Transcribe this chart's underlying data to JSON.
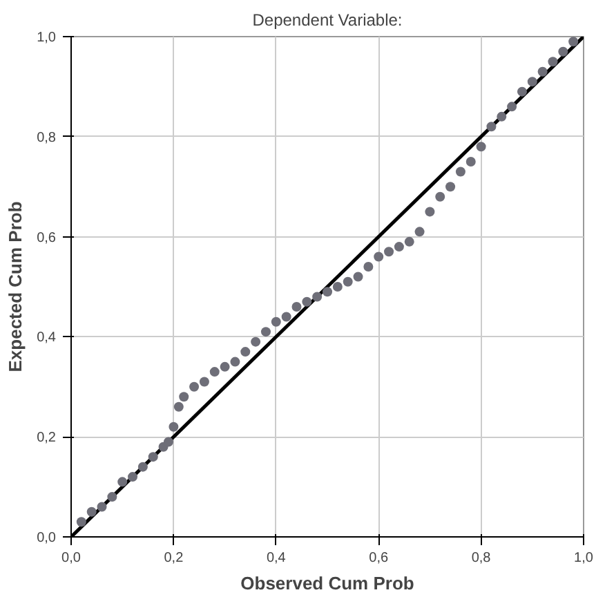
{
  "chart_data": {
    "type": "scatter",
    "title": "Dependent Variable:",
    "xlabel": "Observed Cum Prob",
    "ylabel": "Expected Cum Prob",
    "xlim": [
      0,
      1
    ],
    "ylim": [
      0,
      1
    ],
    "xticks": [
      {
        "value": 0,
        "label": "0,0"
      },
      {
        "value": 0.2,
        "label": "0,2"
      },
      {
        "value": 0.4,
        "label": "0,4"
      },
      {
        "value": 0.6,
        "label": "0,6"
      },
      {
        "value": 0.8,
        "label": "0,8"
      },
      {
        "value": 1,
        "label": "1,0"
      }
    ],
    "yticks": [
      {
        "value": 0,
        "label": "0,0"
      },
      {
        "value": 0.2,
        "label": "0,2"
      },
      {
        "value": 0.4,
        "label": "0,4"
      },
      {
        "value": 0.6,
        "label": "0,6"
      },
      {
        "value": 0.8,
        "label": "0,8"
      },
      {
        "value": 1,
        "label": "1,0"
      }
    ],
    "grid": true,
    "series": [
      {
        "marker": "circle",
        "color": "#6e6e78",
        "x": [
          0.02,
          0.04,
          0.06,
          0.08,
          0.1,
          0.12,
          0.14,
          0.16,
          0.18,
          0.19,
          0.2,
          0.21,
          0.22,
          0.24,
          0.26,
          0.28,
          0.3,
          0.32,
          0.34,
          0.36,
          0.38,
          0.4,
          0.42,
          0.44,
          0.46,
          0.48,
          0.5,
          0.52,
          0.54,
          0.56,
          0.58,
          0.6,
          0.62,
          0.64,
          0.66,
          0.68,
          0.7,
          0.72,
          0.74,
          0.76,
          0.78,
          0.8,
          0.82,
          0.84,
          0.86,
          0.88,
          0.9,
          0.92,
          0.94,
          0.96,
          0.98
        ],
        "values": [
          0.03,
          0.05,
          0.06,
          0.08,
          0.11,
          0.12,
          0.14,
          0.16,
          0.18,
          0.19,
          0.22,
          0.26,
          0.28,
          0.3,
          0.31,
          0.33,
          0.34,
          0.35,
          0.37,
          0.39,
          0.41,
          0.43,
          0.44,
          0.46,
          0.47,
          0.48,
          0.49,
          0.5,
          0.51,
          0.52,
          0.54,
          0.56,
          0.57,
          0.58,
          0.59,
          0.61,
          0.65,
          0.68,
          0.7,
          0.73,
          0.75,
          0.78,
          0.82,
          0.84,
          0.86,
          0.89,
          0.91,
          0.93,
          0.95,
          0.97,
          0.99
        ]
      },
      {
        "type": "line",
        "marker": "none",
        "color": "#000000",
        "x": [
          0,
          1
        ],
        "values": [
          0,
          1
        ]
      }
    ]
  }
}
